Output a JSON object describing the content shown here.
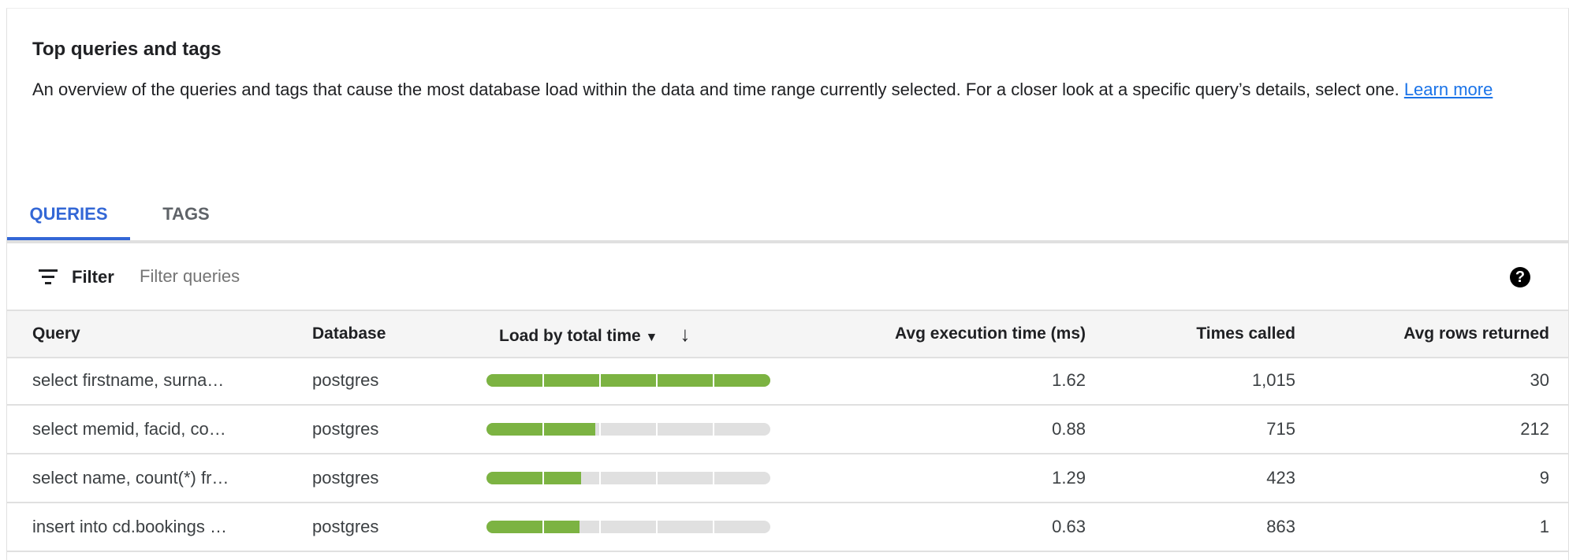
{
  "header": {
    "title": "Top queries and tags",
    "description": "An overview of the queries and tags that cause the most database load within the data and time range currently selected. For a closer look at a specific query’s details, select one.",
    "learn_more": "Learn more"
  },
  "tabs": [
    {
      "label": "QUERIES",
      "active": true
    },
    {
      "label": "TAGS",
      "active": false
    }
  ],
  "filter": {
    "label": "Filter",
    "placeholder": "Filter queries",
    "icon": "filter-icon",
    "help_icon": "help-icon"
  },
  "table": {
    "columns": [
      "Query",
      "Database",
      "Load by total time",
      "Avg execution time (ms)",
      "Times called",
      "Avg rows returned"
    ],
    "sort": {
      "column": "Load by total time",
      "direction": "descending"
    },
    "rows": [
      {
        "query": "select firstname, surna…",
        "database": "postgres",
        "load": 1.0,
        "avg_exec": "1.62",
        "times_called": "1,015",
        "avg_rows": "30"
      },
      {
        "query": "select memid, facid, co…",
        "database": "postgres",
        "load": 0.383,
        "avg_exec": "0.88",
        "times_called": "715",
        "avg_rows": "212"
      },
      {
        "query": "select name, count(*) fr…",
        "database": "postgres",
        "load": 0.333,
        "avg_exec": "1.29",
        "times_called": "423",
        "avg_rows": "9"
      },
      {
        "query": "insert into cd.bookings …",
        "database": "postgres",
        "load": 0.328,
        "avg_exec": "0.63",
        "times_called": "863",
        "avg_rows": "1"
      }
    ]
  },
  "colors": {
    "accent": "#3367d6",
    "link": "#1a73e8",
    "bar_fill": "#7cb342",
    "bar_track": "#e0e0e0"
  }
}
